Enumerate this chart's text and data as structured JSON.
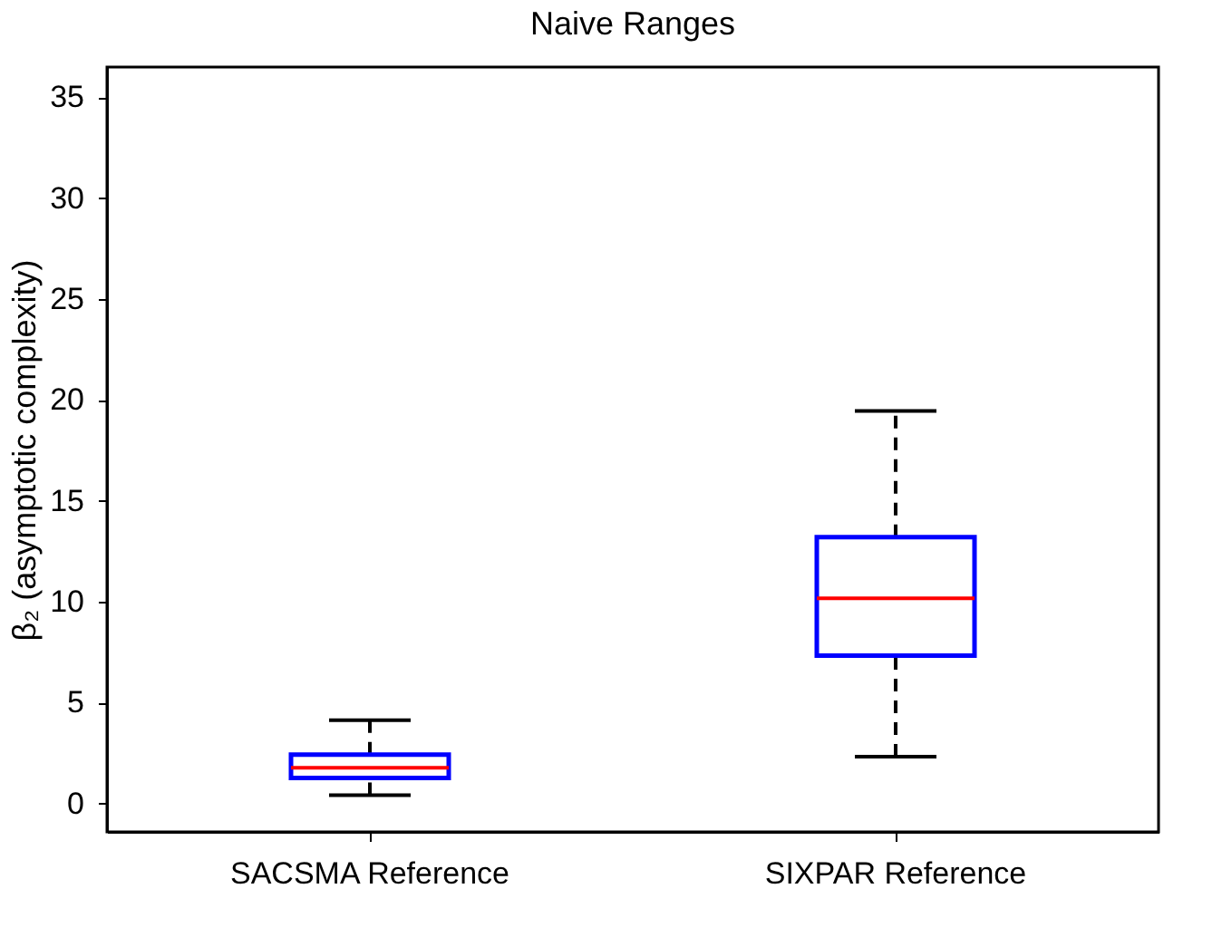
{
  "chart_data": {
    "type": "box",
    "title": "Naive Ranges",
    "ylabel": "β₂ (asymptotic complexity)",
    "categories": [
      "SACSMA Reference",
      "SIXPAR Reference"
    ],
    "series": [
      {
        "color": "#0000ff",
        "boxes": [
          {
            "low": 0.42,
            "q1": 1.27,
            "median": 1.78,
            "q3": 2.43,
            "high": 4.13
          },
          {
            "low": 2.33,
            "q1": 7.33,
            "median": 10.17,
            "q3": 13.2,
            "high": 19.46
          }
        ]
      }
    ],
    "ylim": [
      -1.4,
      36.5
    ],
    "yticks": [
      0,
      5,
      10,
      15,
      20,
      25,
      30,
      35
    ],
    "grid": false,
    "line_style": "dashed"
  }
}
